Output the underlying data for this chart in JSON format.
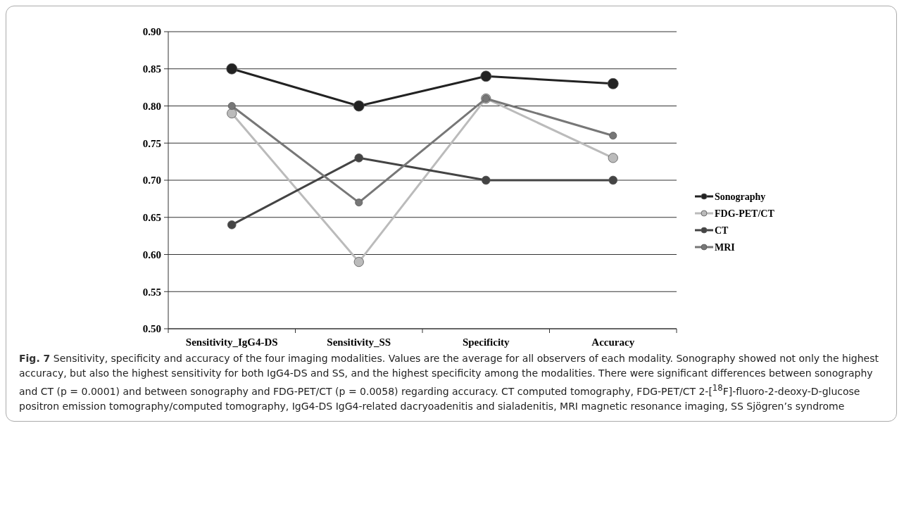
{
  "chart_data": {
    "type": "line",
    "categories": [
      "Sensitivity_IgG4-DS",
      "Sensitivity_SS",
      "Specificity",
      "Accuracy"
    ],
    "series": [
      {
        "name": "Sonography",
        "color": "#222222",
        "values": [
          0.85,
          0.8,
          0.84,
          0.83
        ]
      },
      {
        "name": "FDG-PET/CT",
        "color": "#bbbbbb",
        "values": [
          0.79,
          0.59,
          0.81,
          0.73
        ]
      },
      {
        "name": "CT",
        "color": "#444444",
        "values": [
          0.64,
          0.73,
          0.7,
          0.7
        ]
      },
      {
        "name": "MRI",
        "color": "#777777",
        "values": [
          0.8,
          0.67,
          0.81,
          0.76
        ]
      }
    ],
    "ylim": [
      0.5,
      0.9
    ],
    "yticks": [
      {
        "value": 0.5,
        "label": "0.50"
      },
      {
        "value": 0.55,
        "label": "0.55"
      },
      {
        "value": 0.6,
        "label": "0.60"
      },
      {
        "value": 0.65,
        "label": "0.65"
      },
      {
        "value": 0.7,
        "label": "0.70"
      },
      {
        "value": 0.75,
        "label": "0.75"
      },
      {
        "value": 0.8,
        "label": "0.80"
      },
      {
        "value": 0.85,
        "label": "0.85"
      },
      {
        "value": 0.9,
        "label": "0.90"
      }
    ],
    "grid": "y",
    "legend": "right",
    "marker": "circle",
    "annotations": [
      "Fig. 7",
      "Sensitivity, specificity and accuracy of the four imaging modalities. Values are the average for all observers of each modality. Sonography showed not only the highest accuracy, but also the highest sensitivity for both IgG4-DS and SS, and the highest specificity among the modalities. There were significant differences between sonography and CT (p = 0.0001) and between sonography and FDG-PET/CT (p = 0.0058) regarding accuracy. CT computed tomography, FDG-PET/CT 2-[$^{18}$F]-fluoro-2-deoxy-D-glucose positron emission tomography/computed tomography, IgG4-DS IgG4-related dacryoadenitis and sialadenitis, MRI magnetic resonance imaging, SS Sjögren’s syndrome"
    ]
  }
}
